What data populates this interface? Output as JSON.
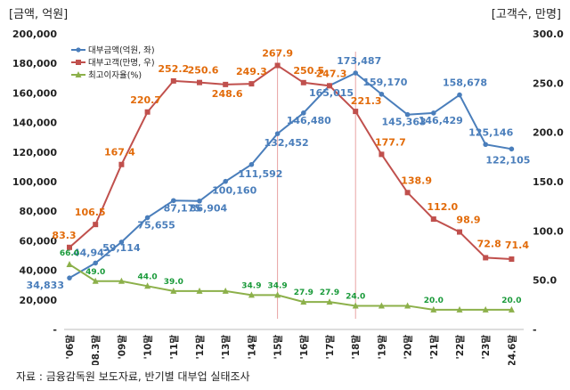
{
  "chart_data": {
    "type": "line",
    "left_unit": "[금액, 억원]",
    "right_unit": "[고객수, 만명]",
    "categories": [
      "'06말",
      "'08.3말",
      "'09말",
      "'10말",
      "'11말",
      "'12말",
      "'13말",
      "'14말",
      "'15말",
      "'16말",
      "'17말",
      "'18말",
      "'19말",
      "'20말",
      "'21말",
      "'22말",
      "'23말",
      "24.6말"
    ],
    "y_left": {
      "min": 0,
      "max": 200000,
      "ticks": [
        "-",
        "20,000",
        "40,000",
        "60,000",
        "80,000",
        "100,000",
        "120,000",
        "140,000",
        "160,000",
        "180,000",
        "200,000"
      ]
    },
    "y_right": {
      "min": 0,
      "max": 300,
      "ticks": [
        "-",
        "50.0",
        "100.0",
        "150.0",
        "200.0",
        "250.0",
        "300.0"
      ]
    },
    "series": [
      {
        "name": "대부금액(억원, 좌)",
        "axis": "left",
        "color": "#4a7ebb",
        "values": [
          34833,
          44942,
          59114,
          75655,
          87175,
          86904,
          100160,
          111592,
          132452,
          146480,
          165015,
          173487,
          159170,
          145363,
          146429,
          158678,
          125146,
          122105
        ],
        "labels": [
          "34,833",
          "44,942",
          "59,114",
          "75,655",
          "87,175",
          "86,904",
          "100,160",
          "111,592",
          "132,452",
          "146,480",
          "165,015",
          "173,487",
          "159,170",
          "145,363",
          "146,429",
          "158,678",
          "125,146",
          "122,105"
        ]
      },
      {
        "name": "대부고객(만명, 우)",
        "axis": "right",
        "color": "#c0504d",
        "label_color": "#e26b0a",
        "values": [
          83.3,
          106.5,
          167.4,
          220.7,
          252.2,
          250.6,
          248.6,
          249.3,
          267.9,
          250.5,
          247.3,
          221.3,
          177.7,
          138.9,
          112.0,
          98.9,
          72.8,
          71.4
        ],
        "labels": [
          "83.3",
          "106.5",
          "167.4",
          "220.7",
          "252.2",
          "250.6",
          "248.6",
          "249.3",
          "267.9",
          "250.5",
          "247.3",
          "221.3",
          "177.7",
          "138.9",
          "112.0",
          "98.9",
          "72.8",
          "71.4"
        ]
      },
      {
        "name": "최고이자율(%)",
        "axis": "right",
        "color": "#8cb04a",
        "label_color": "#1a9a3a",
        "values": [
          66.0,
          49.0,
          49.0,
          44.0,
          39.0,
          39.0,
          39.0,
          34.9,
          34.9,
          27.9,
          27.9,
          24.0,
          24.0,
          24.0,
          20.0,
          20.0,
          20.0,
          20.0
        ],
        "labels": [
          "66.0",
          "49.0",
          null,
          "44.0",
          "39.0",
          null,
          null,
          "34.9",
          "34.9",
          "27.9",
          "27.9",
          "24.0",
          null,
          null,
          "20.0",
          null,
          null,
          "20.0"
        ]
      }
    ],
    "vertical_markers": [
      "'15말",
      "'18말"
    ]
  },
  "source": "자료 : 금융감독원 보도자료, 반기별 대부업 실태조사"
}
